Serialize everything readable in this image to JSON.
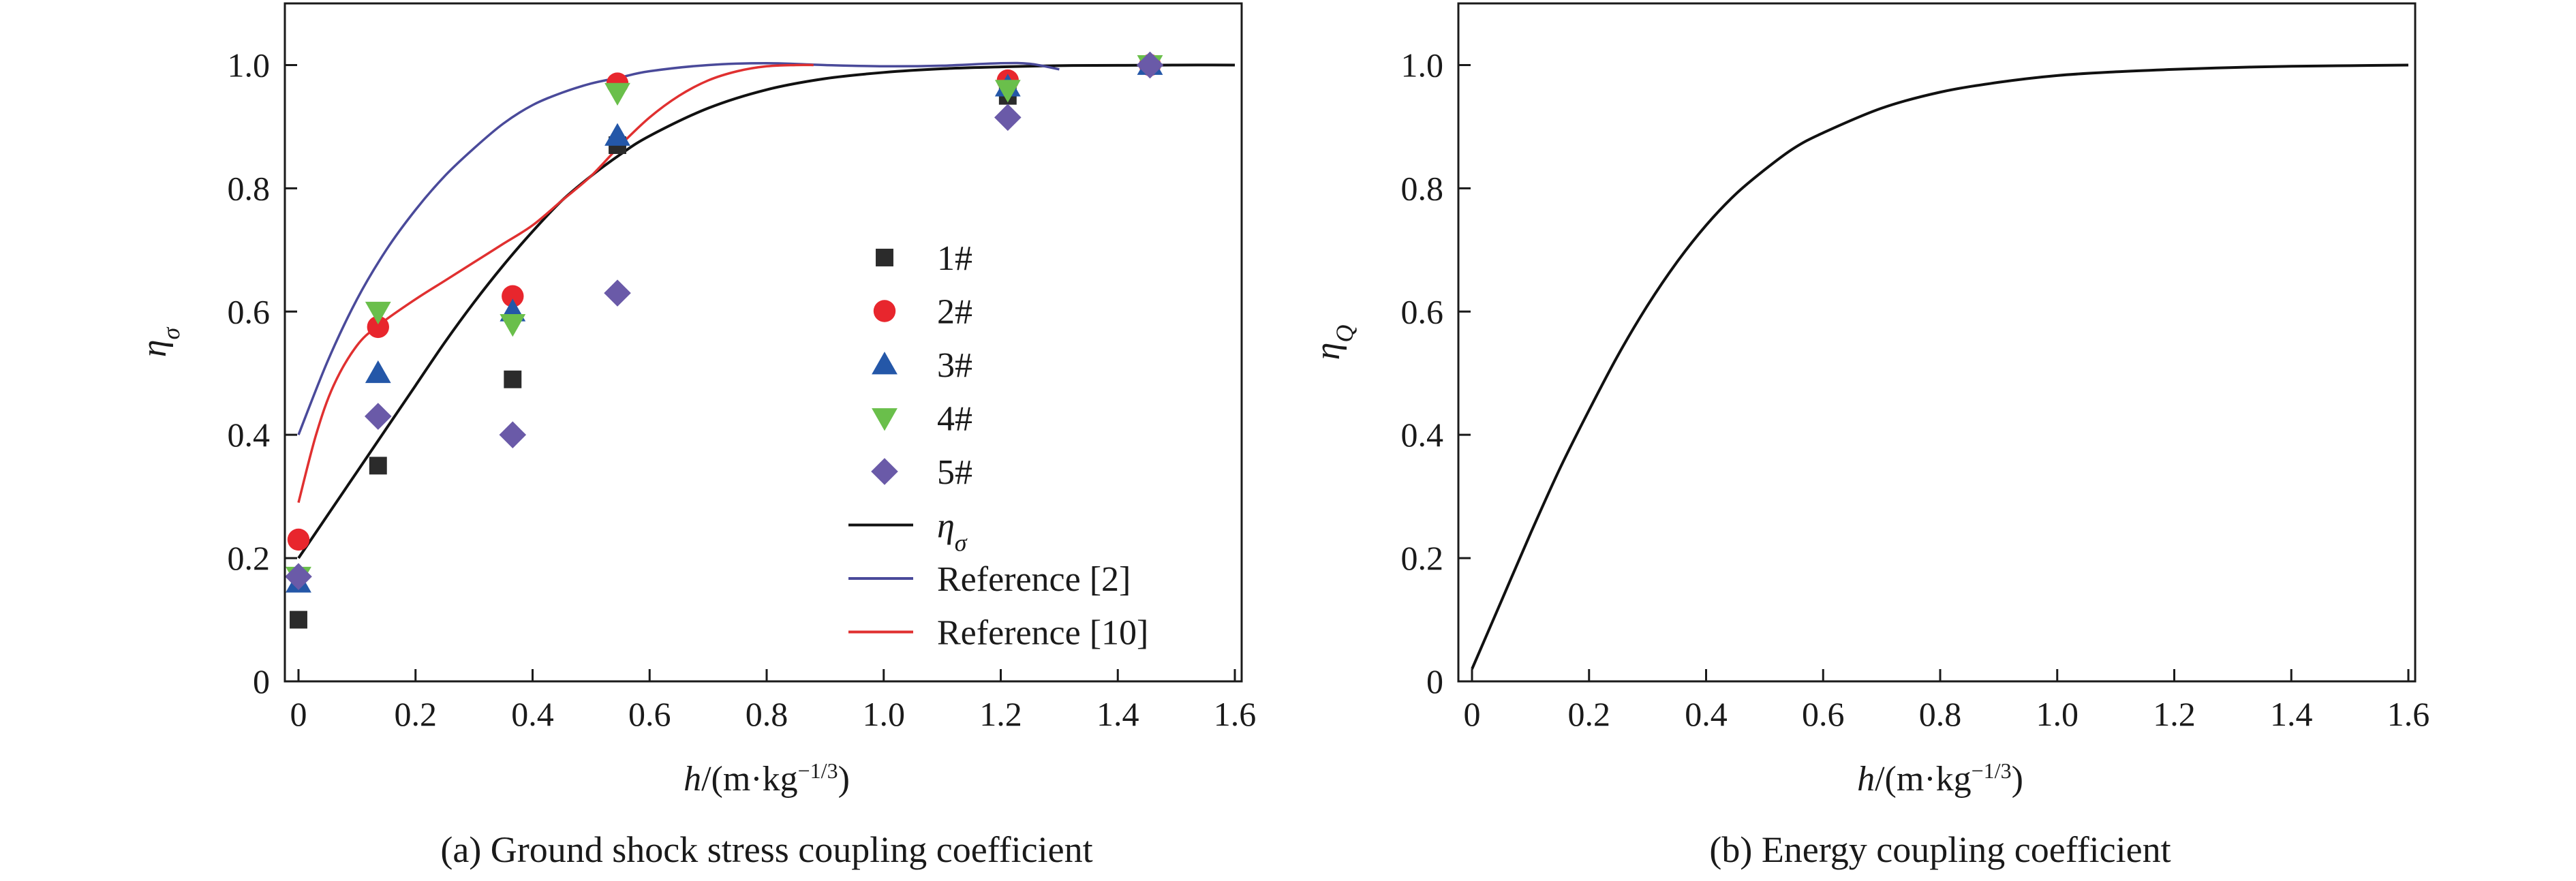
{
  "chart_data": [
    {
      "type": "scatter",
      "caption": "(a) Ground shock stress coupling coefficient",
      "xlabel_italic": "h",
      "xlabel_rest": "/(m·kg",
      "xlabel_sup": "−1/3",
      "xlabel_close": ")",
      "ylabel_symbol": "η",
      "ylabel_sub": "σ",
      "xlim": [
        0,
        1.6
      ],
      "ylim": [
        0,
        1.1
      ],
      "x_ticks": [
        "0",
        "0.2",
        "0.4",
        "0.6",
        "0.8",
        "1.0",
        "1.2",
        "1.4",
        "1.6"
      ],
      "y_ticks": [
        "0",
        "0.2",
        "0.4",
        "0.6",
        "0.8",
        "1.0"
      ],
      "x_tick_values": [
        0,
        0.2,
        0.4,
        0.6,
        0.8,
        1.0,
        1.2,
        1.4,
        1.6
      ],
      "y_tick_values": [
        0,
        0.2,
        0.4,
        0.6,
        0.8,
        1.0
      ],
      "legend_position": "center-right",
      "series": [
        {
          "name": "1#",
          "marker": "square",
          "color": "#2b2b2b",
          "x": [
            0.0,
            0.136,
            0.366,
            0.545,
            1.212,
            1.455
          ],
          "y": [
            0.1,
            0.35,
            0.49,
            0.87,
            0.95,
            1.0
          ]
        },
        {
          "name": "2#",
          "marker": "circle",
          "color": "#e8262d",
          "x": [
            0.0,
            0.136,
            0.366,
            0.545,
            1.212,
            1.455
          ],
          "y": [
            0.23,
            0.575,
            0.625,
            0.97,
            0.975,
            1.0
          ]
        },
        {
          "name": "3#",
          "marker": "triangle-up",
          "color": "#2457a8",
          "x": [
            0.0,
            0.136,
            0.366,
            0.545,
            1.212,
            1.455
          ],
          "y": [
            0.16,
            0.5,
            0.6,
            0.885,
            0.965,
            1.0
          ]
        },
        {
          "name": "4#",
          "marker": "triangle-down",
          "color": "#6abf4b",
          "x": [
            0.0,
            0.136,
            0.366,
            0.545,
            1.212,
            1.455
          ],
          "y": [
            0.17,
            0.6,
            0.58,
            0.955,
            0.96,
            1.0
          ]
        },
        {
          "name": "5#",
          "marker": "diamond",
          "color": "#6a5aa8",
          "x": [
            0.0,
            0.136,
            0.366,
            0.545,
            1.212,
            1.455
          ],
          "y": [
            0.17,
            0.43,
            0.4,
            0.63,
            0.915,
            1.0
          ]
        }
      ],
      "lines": [
        {
          "name_symbol": "η",
          "name_sub": "σ",
          "color": "#111111",
          "x": [
            0.0,
            0.05,
            0.1,
            0.15,
            0.2,
            0.25,
            0.3,
            0.35,
            0.4,
            0.45,
            0.5,
            0.55,
            0.6,
            0.7,
            0.8,
            0.9,
            1.0,
            1.1,
            1.2,
            1.3,
            1.4,
            1.5,
            1.6
          ],
          "y": [
            0.2,
            0.27,
            0.34,
            0.41,
            0.48,
            0.55,
            0.615,
            0.675,
            0.73,
            0.78,
            0.82,
            0.855,
            0.885,
            0.93,
            0.96,
            0.978,
            0.988,
            0.994,
            0.997,
            0.999,
            0.9995,
            1.0,
            1.0
          ]
        },
        {
          "name": "Reference [2]",
          "color": "#4a4a9a",
          "x": [
            0.0,
            0.05,
            0.1,
            0.15,
            0.2,
            0.25,
            0.3,
            0.35,
            0.4,
            0.45,
            0.5,
            0.55,
            0.6,
            0.7,
            0.8,
            0.9,
            1.0,
            1.1,
            1.2,
            1.25,
            1.3
          ],
          "y": [
            0.4,
            0.52,
            0.62,
            0.7,
            0.765,
            0.82,
            0.865,
            0.905,
            0.935,
            0.955,
            0.97,
            0.98,
            0.99,
            1.0,
            1.003,
            1.0,
            0.998,
            0.999,
            1.003,
            1.002,
            0.993
          ]
        },
        {
          "name": "Reference [10]",
          "color": "#e03030",
          "x": [
            0.0,
            0.03,
            0.06,
            0.1,
            0.14,
            0.2,
            0.25,
            0.3,
            0.35,
            0.4,
            0.45,
            0.5,
            0.55,
            0.6,
            0.65,
            0.7,
            0.75,
            0.8,
            0.85,
            0.88
          ],
          "y": [
            0.29,
            0.4,
            0.48,
            0.545,
            0.58,
            0.62,
            0.65,
            0.68,
            0.71,
            0.74,
            0.78,
            0.82,
            0.87,
            0.915,
            0.95,
            0.975,
            0.99,
            0.998,
            1.0,
            1.0
          ]
        }
      ]
    },
    {
      "type": "line",
      "caption": "(b) Energy coupling coefficient",
      "xlabel_italic": "h",
      "xlabel_rest": "/(m·kg",
      "xlabel_sup": "−1/3",
      "xlabel_close": ")",
      "ylabel_symbol": "η",
      "ylabel_sub": "Q",
      "xlim": [
        0,
        1.6
      ],
      "ylim": [
        0,
        1.1
      ],
      "x_ticks": [
        "0",
        "0.2",
        "0.4",
        "0.6",
        "0.8",
        "1.0",
        "1.2",
        "1.4",
        "1.6"
      ],
      "y_ticks": [
        "0",
        "0.2",
        "0.4",
        "0.6",
        "0.8",
        "1.0"
      ],
      "x_tick_values": [
        0,
        0.2,
        0.4,
        0.6,
        0.8,
        1.0,
        1.2,
        1.4,
        1.6
      ],
      "y_tick_values": [
        0,
        0.2,
        0.4,
        0.6,
        0.8,
        1.0
      ],
      "series": [
        {
          "color": "#111111",
          "x": [
            0.0,
            0.05,
            0.1,
            0.15,
            0.2,
            0.25,
            0.3,
            0.35,
            0.4,
            0.45,
            0.5,
            0.55,
            0.6,
            0.7,
            0.8,
            0.9,
            1.0,
            1.1,
            1.2,
            1.3,
            1.4,
            1.5,
            1.6
          ],
          "y": [
            0.02,
            0.13,
            0.24,
            0.345,
            0.44,
            0.53,
            0.61,
            0.68,
            0.74,
            0.79,
            0.83,
            0.865,
            0.89,
            0.93,
            0.956,
            0.972,
            0.983,
            0.989,
            0.993,
            0.996,
            0.998,
            0.999,
            1.0
          ]
        }
      ]
    }
  ]
}
